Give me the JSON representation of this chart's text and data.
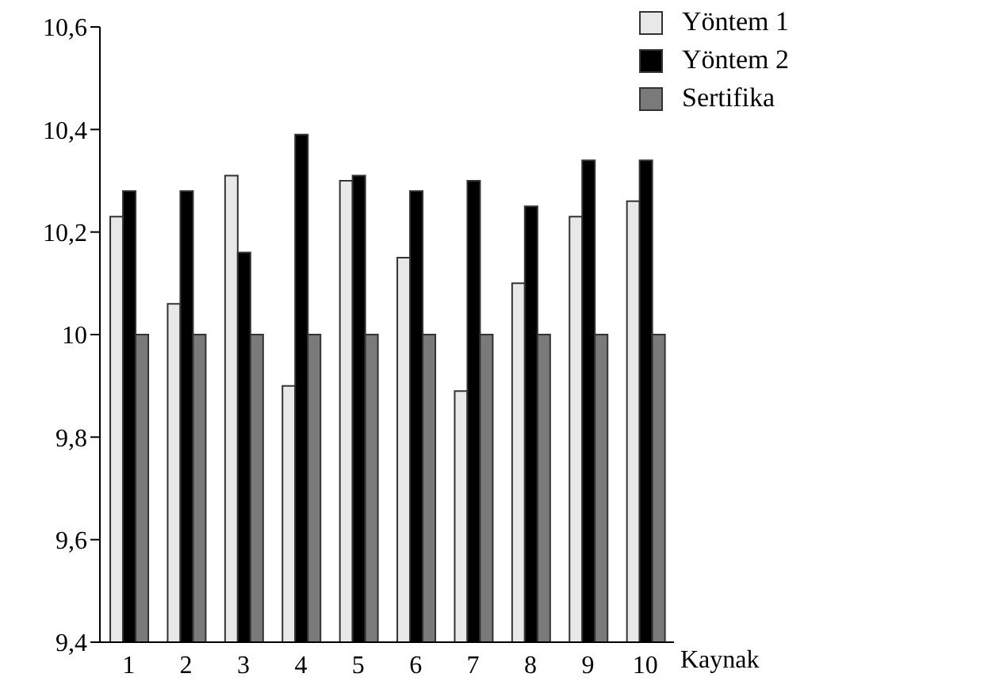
{
  "chart_data": {
    "type": "bar",
    "xlabel": "Kaynak",
    "categories": [
      "1",
      "2",
      "3",
      "4",
      "5",
      "6",
      "7",
      "8",
      "9",
      "10"
    ],
    "series": [
      {
        "name": "Yöntem 1",
        "color": "#e8e8e8",
        "values": [
          10.23,
          10.06,
          10.31,
          9.9,
          10.3,
          10.15,
          9.89,
          10.1,
          10.23,
          10.26
        ]
      },
      {
        "name": "Yöntem 2",
        "color": "#000000",
        "values": [
          10.28,
          10.28,
          10.16,
          10.39,
          10.31,
          10.28,
          10.3,
          10.25,
          10.34,
          10.34
        ]
      },
      {
        "name": "Sertifika",
        "color": "#7a7a7a",
        "values": [
          10,
          10,
          10,
          10,
          10,
          10,
          10,
          10,
          10,
          10
        ]
      }
    ],
    "ylim": [
      9.4,
      10.6
    ],
    "yticks": [
      {
        "value": 9.4,
        "label": "9,4"
      },
      {
        "value": 9.6,
        "label": "9,6"
      },
      {
        "value": 9.8,
        "label": "9,8"
      },
      {
        "value": 10,
        "label": "10"
      },
      {
        "value": 10.2,
        "label": "10,2"
      },
      {
        "value": 10.4,
        "label": "10,4"
      },
      {
        "value": 10.6,
        "label": "10,6"
      }
    ],
    "legend": "top right",
    "grid": false
  }
}
